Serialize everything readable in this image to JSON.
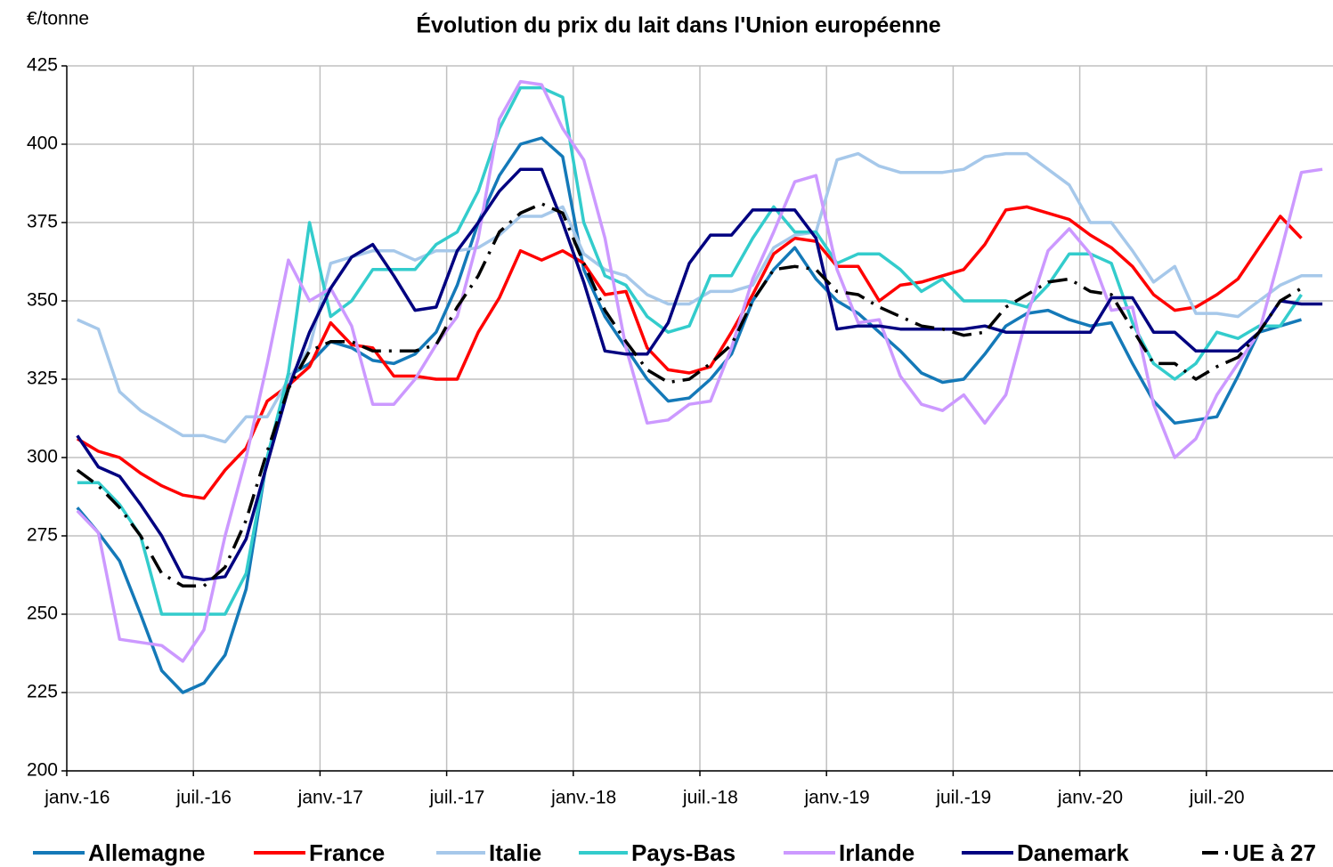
{
  "chart_data": {
    "type": "line",
    "title": "Évolution du prix du lait dans l'Union européenne",
    "y_label": "€/tonne",
    "categories": [
      "janv.-16",
      null,
      null,
      null,
      null,
      null,
      "juil.-16",
      null,
      null,
      null,
      null,
      null,
      "janv.-17",
      null,
      null,
      null,
      null,
      null,
      "juil.-17",
      null,
      null,
      null,
      null,
      null,
      "janv.-18",
      null,
      null,
      null,
      null,
      null,
      "juil.-18",
      null,
      null,
      null,
      null,
      null,
      "janv.-19",
      null,
      null,
      null,
      null,
      null,
      "juil.-19",
      null,
      null,
      null,
      null,
      null,
      "janv.-20",
      null,
      null,
      null,
      null,
      null,
      "juil.-20",
      null,
      null,
      null,
      null,
      null
    ],
    "ylim": [
      200,
      425
    ],
    "yticks": [
      200,
      225,
      250,
      275,
      300,
      325,
      350,
      375,
      400,
      425
    ],
    "grid": true,
    "legend": "bottom",
    "series": [
      {
        "name": "Allemagne",
        "color": "#1479b8",
        "values": [
          284,
          276,
          267,
          250,
          232,
          225,
          228,
          237,
          258,
          300,
          326,
          330,
          337,
          335,
          331,
          330,
          333,
          340,
          355,
          375,
          390,
          400,
          402,
          396,
          360,
          345,
          335,
          325,
          318,
          319,
          325,
          333,
          350,
          360,
          367,
          357,
          350,
          346,
          340,
          334,
          327,
          324,
          325,
          333,
          342,
          346,
          347,
          344,
          342,
          343,
          330,
          318,
          311,
          312,
          313,
          326,
          340,
          342,
          344,
          null
        ]
      },
      {
        "name": "France",
        "color": "#ff0000",
        "values": [
          306,
          302,
          300,
          295,
          291,
          288,
          287,
          296,
          303,
          318,
          323,
          329,
          343,
          336,
          335,
          326,
          326,
          325,
          325,
          340,
          351,
          366,
          363,
          366,
          362,
          352,
          353,
          335,
          328,
          327,
          329,
          340,
          352,
          365,
          370,
          369,
          361,
          361,
          350,
          355,
          356,
          358,
          360,
          368,
          379,
          380,
          378,
          376,
          371,
          367,
          361,
          352,
          347,
          348,
          352,
          357,
          367,
          377,
          370,
          null
        ]
      },
      {
        "name": "Italie",
        "color": "#a6c8ea",
        "values": [
          344,
          341,
          321,
          315,
          311,
          307,
          307,
          305,
          313,
          313,
          325,
          335,
          362,
          364,
          366,
          366,
          363,
          366,
          366,
          367,
          371,
          377,
          377,
          380,
          365,
          360,
          358,
          352,
          349,
          349,
          353,
          353,
          355,
          367,
          371,
          372,
          395,
          397,
          393,
          391,
          391,
          391,
          392,
          396,
          397,
          397,
          392,
          387,
          375,
          375,
          366,
          356,
          361,
          346,
          346,
          345,
          350,
          355,
          358,
          358
        ]
      },
      {
        "name": "Pays-Bas",
        "color": "#33cccc",
        "values": [
          292,
          292,
          285,
          275,
          250,
          250,
          250,
          250,
          263,
          300,
          327,
          375,
          345,
          350,
          360,
          360,
          360,
          368,
          372,
          385,
          405,
          418,
          418,
          415,
          375,
          358,
          355,
          345,
          340,
          342,
          358,
          358,
          370,
          380,
          372,
          372,
          362,
          365,
          365,
          360,
          353,
          357,
          350,
          350,
          350,
          348,
          355,
          365,
          365,
          362,
          343,
          330,
          325,
          330,
          340,
          338,
          342,
          342,
          352,
          null
        ]
      },
      {
        "name": "Irlande",
        "color": "#cc99ff",
        "values": [
          283,
          276,
          242,
          241,
          240,
          235,
          245,
          275,
          300,
          330,
          363,
          350,
          354,
          342,
          317,
          317,
          325,
          336,
          345,
          370,
          408,
          420,
          419,
          405,
          395,
          370,
          335,
          311,
          312,
          317,
          318,
          335,
          357,
          372,
          388,
          390,
          360,
          343,
          344,
          326,
          317,
          315,
          320,
          311,
          320,
          345,
          366,
          373,
          365,
          347,
          348,
          317,
          300,
          306,
          320,
          330,
          340,
          365,
          391,
          392
        ]
      },
      {
        "name": "Danemark",
        "color": "#000080",
        "values": [
          307,
          297,
          294,
          285,
          275,
          262,
          261,
          262,
          274,
          298,
          322,
          340,
          354,
          364,
          368,
          358,
          347,
          348,
          366,
          375,
          385,
          392,
          392,
          375,
          356,
          334,
          333,
          333,
          343,
          362,
          371,
          371,
          379,
          379,
          379,
          370,
          341,
          342,
          342,
          341,
          341,
          341,
          341,
          342,
          340,
          340,
          340,
          340,
          340,
          351,
          351,
          340,
          340,
          334,
          334,
          334,
          340,
          350,
          349,
          349
        ]
      },
      {
        "name": "UE à 27",
        "color": "#000000",
        "style": "dashdot",
        "values": [
          296,
          291,
          284,
          275,
          263,
          259,
          259,
          265,
          280,
          302,
          322,
          334,
          337,
          337,
          334,
          334,
          334,
          336,
          348,
          358,
          372,
          378,
          381,
          378,
          362,
          347,
          337,
          328,
          324,
          325,
          330,
          336,
          350,
          360,
          361,
          360,
          353,
          352,
          348,
          345,
          342,
          341,
          339,
          340,
          348,
          352,
          356,
          357,
          353,
          352,
          341,
          330,
          330,
          325,
          329,
          332,
          340,
          350,
          354,
          null
        ]
      }
    ]
  }
}
